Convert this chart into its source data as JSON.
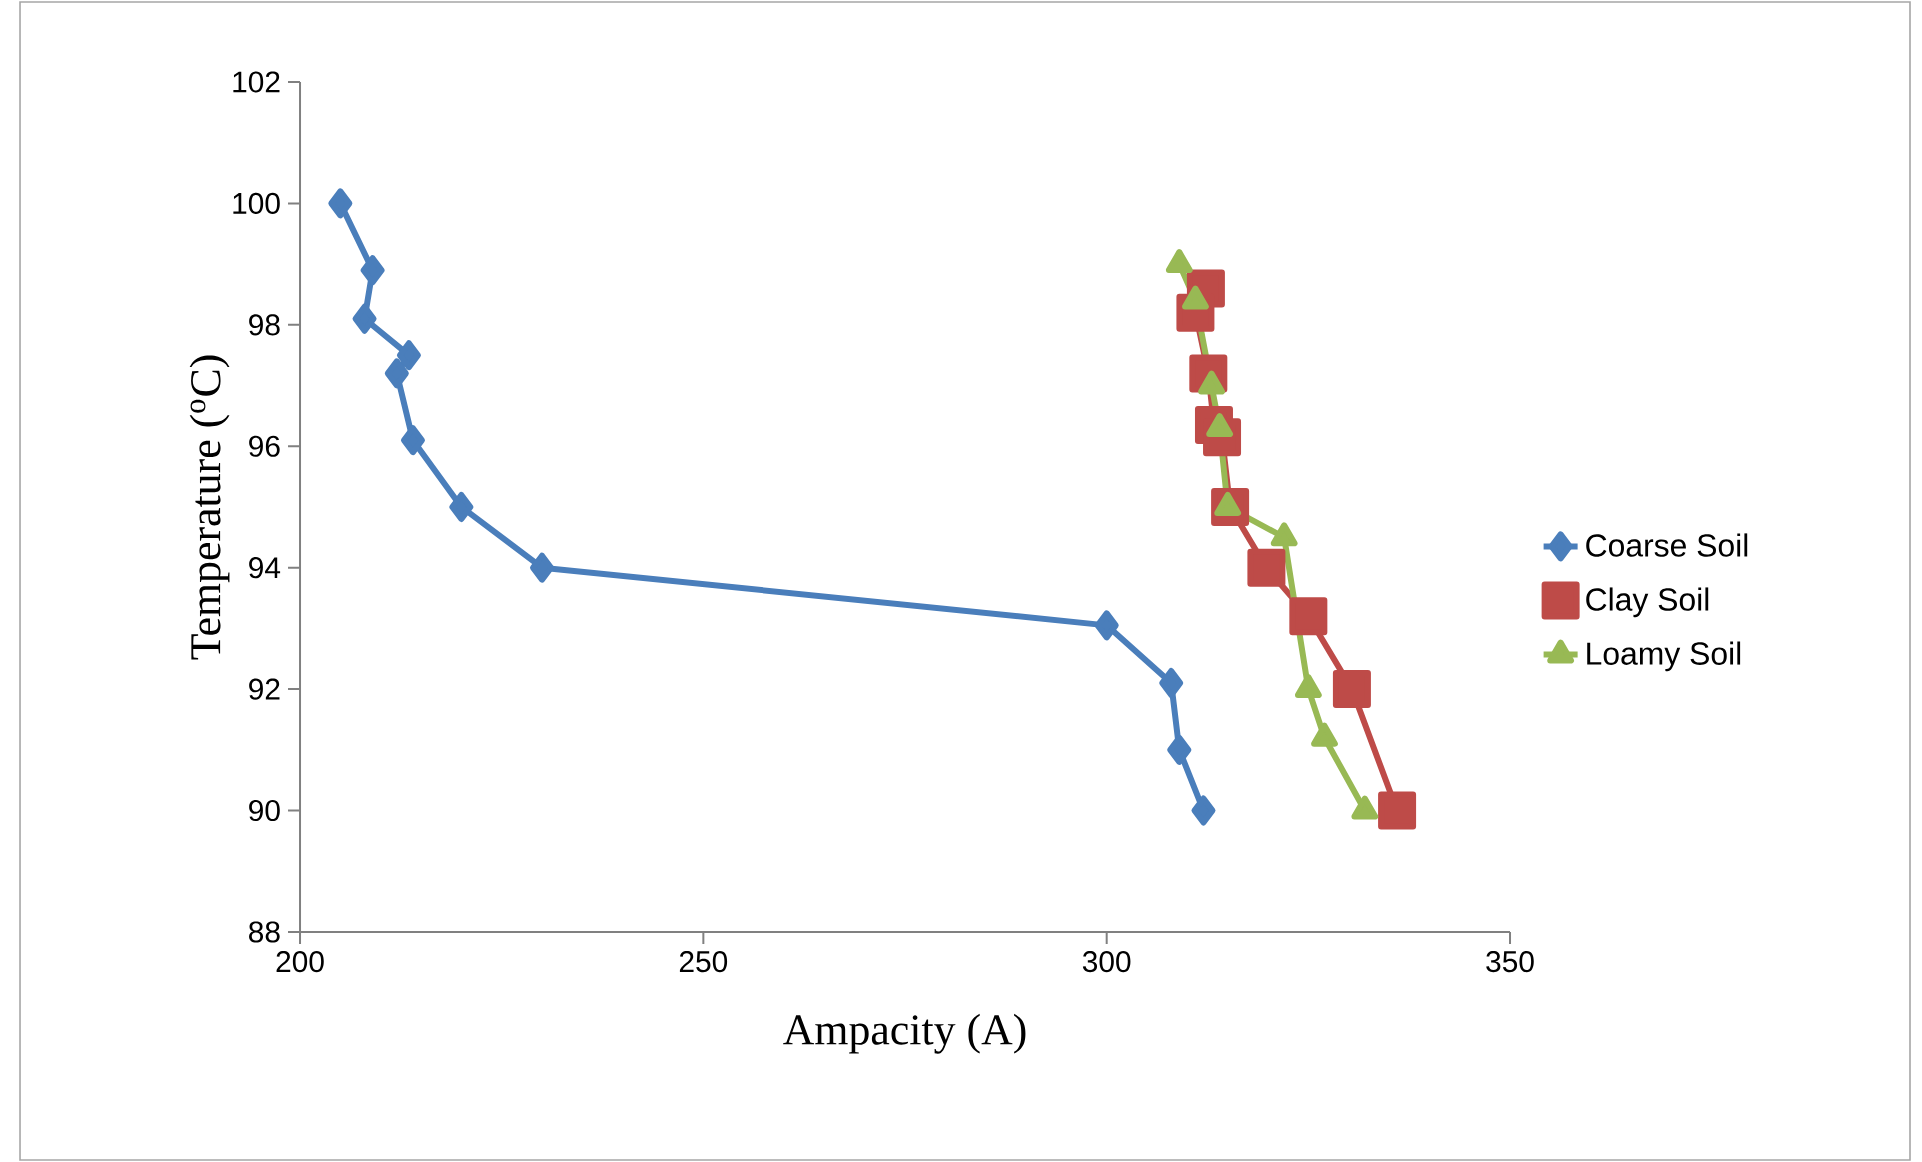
{
  "chart_data": {
    "type": "line",
    "xlabel": "Ampacity (A)",
    "ylabel": "Temperature ($^{o}$C)",
    "xlim": [
      200,
      350
    ],
    "xticks": [
      200,
      250,
      300,
      350
    ],
    "ylim": [
      88,
      102
    ],
    "yticks": [
      88,
      90,
      92,
      94,
      96,
      98,
      100,
      102
    ],
    "grid": false,
    "legend": "right",
    "line_style": "solid",
    "series": [
      {
        "name": "Coarse Soil",
        "color": "#4a7ebb",
        "marker": "diamond",
        "x": [
          205,
          209,
          208,
          213.5,
          212,
          214,
          220,
          230,
          300,
          308,
          309,
          312
        ],
        "values": [
          100,
          98.9,
          98.1,
          97.5,
          97.2,
          96.1,
          95,
          94,
          93.05,
          92.1,
          91,
          90
        ]
      },
      {
        "name": "Clay Soil",
        "color": "#be4b48",
        "marker": "square",
        "x": [
          312.3,
          311,
          312.6,
          313.3,
          314.3,
          315.3,
          319.8,
          325,
          330.4,
          336
        ],
        "values": [
          98.6,
          98.2,
          97.2,
          96.35,
          96.15,
          95,
          94,
          93.2,
          92,
          90
        ]
      },
      {
        "name": "Loamy Soil",
        "color": "#98b954",
        "marker": "triangle",
        "x": [
          309,
          311,
          313,
          314,
          315,
          322,
          325,
          327,
          332
        ],
        "values": [
          99,
          98.4,
          97,
          96.3,
          95,
          94.5,
          92,
          91.2,
          90
        ]
      }
    ]
  }
}
